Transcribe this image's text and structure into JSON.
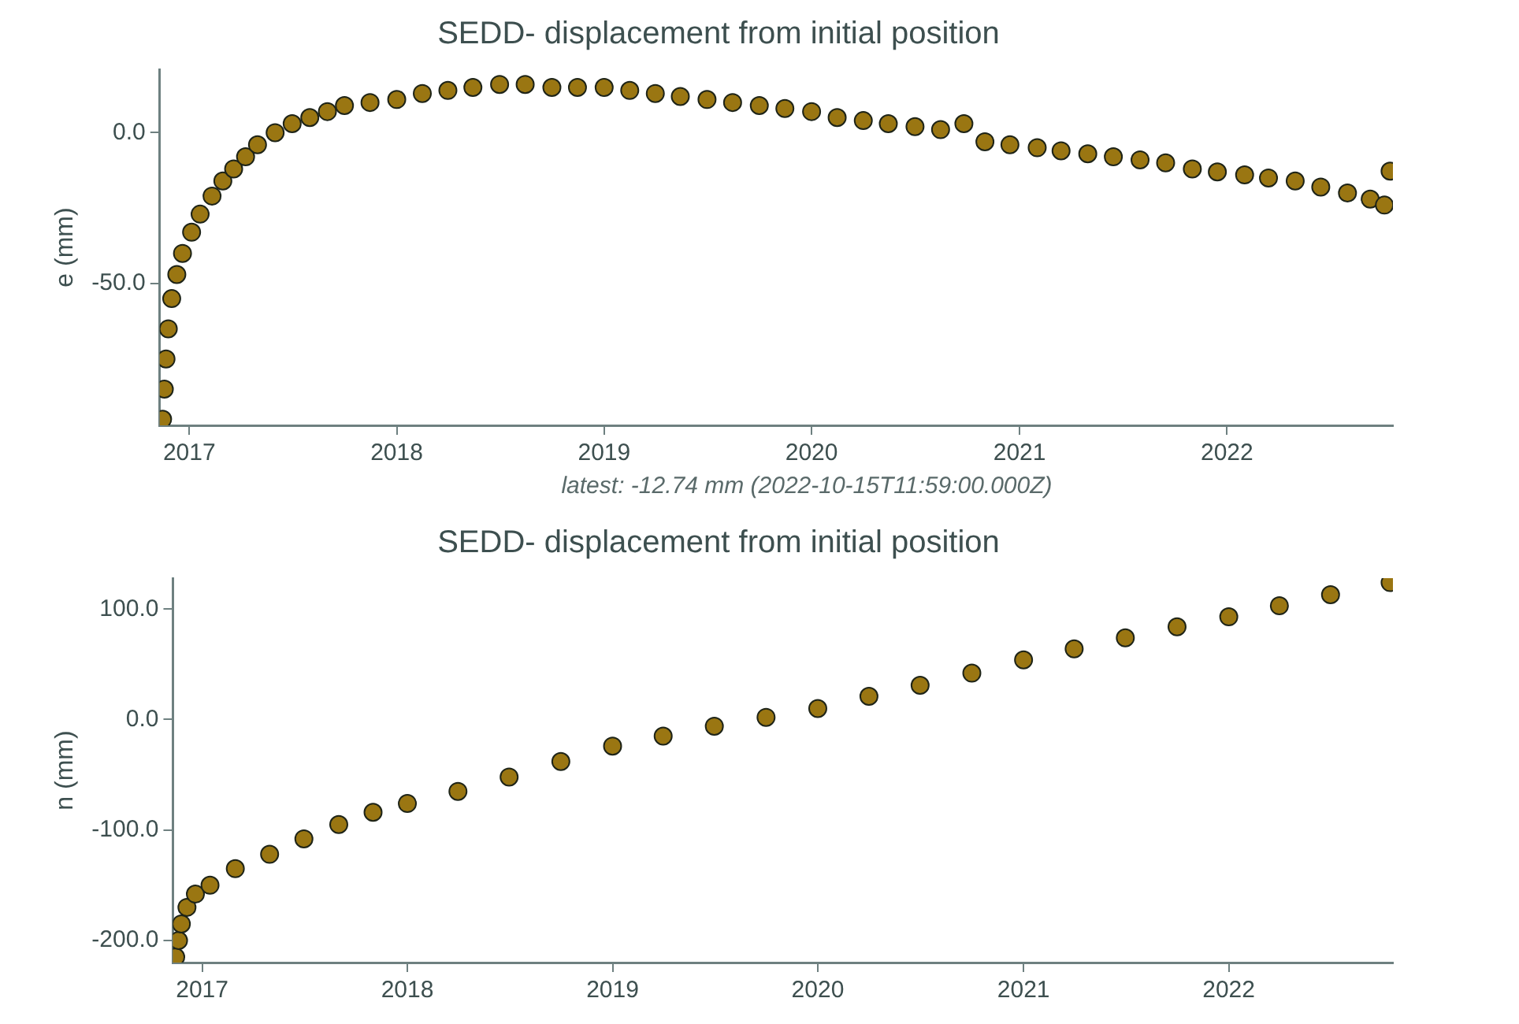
{
  "chart_data": [
    {
      "type": "scatter",
      "title": "SEDD- displacement from initial position",
      "ylabel": "e (mm)",
      "annotations": [
        "latest: -12.74 mm (2022-10-15T11:59:00.000Z)"
      ],
      "marker": "circle",
      "grid": false,
      "legend": false,
      "xlim": [
        "2016-11-10",
        "2022-10-20"
      ],
      "ylim": [
        -97,
        21
      ],
      "xticks": [
        {
          "value": "2017-01-01",
          "label": "2017"
        },
        {
          "value": "2018-01-01",
          "label": "2018"
        },
        {
          "value": "2019-01-01",
          "label": "2019"
        },
        {
          "value": "2020-01-01",
          "label": "2020"
        },
        {
          "value": "2021-01-01",
          "label": "2021"
        },
        {
          "value": "2022-01-01",
          "label": "2022"
        }
      ],
      "yticks": [
        {
          "value": -50,
          "label": "-50.0"
        },
        {
          "value": 0,
          "label": "0.0"
        }
      ],
      "series": [
        {
          "color": "#9a7612",
          "x": [
            "2016-11-15",
            "2016-11-18",
            "2016-11-21",
            "2016-11-25",
            "2016-12-01",
            "2016-12-10",
            "2016-12-20",
            "2017-01-05",
            "2017-01-20",
            "2017-02-10",
            "2017-03-01",
            "2017-03-20",
            "2017-04-10",
            "2017-05-01",
            "2017-06-01",
            "2017-07-01",
            "2017-08-01",
            "2017-09-01",
            "2017-10-01",
            "2017-11-15",
            "2018-01-01",
            "2018-02-15",
            "2018-04-01",
            "2018-05-15",
            "2018-07-01",
            "2018-08-15",
            "2018-10-01",
            "2018-11-15",
            "2019-01-01",
            "2019-02-15",
            "2019-04-01",
            "2019-05-15",
            "2019-07-01",
            "2019-08-15",
            "2019-10-01",
            "2019-11-15",
            "2020-01-01",
            "2020-02-15",
            "2020-04-01",
            "2020-05-15",
            "2020-07-01",
            "2020-08-15",
            "2020-09-25",
            "2020-11-01",
            "2020-12-15",
            "2021-02-01",
            "2021-03-15",
            "2021-05-01",
            "2021-06-15",
            "2021-08-01",
            "2021-09-15",
            "2021-11-01",
            "2021-12-15",
            "2022-02-01",
            "2022-03-15",
            "2022-05-01",
            "2022-06-15",
            "2022-08-01",
            "2022-09-10",
            "2022-10-05",
            "2022-10-15"
          ],
          "values": [
            -95,
            -85,
            -75,
            -65,
            -55,
            -47,
            -40,
            -33,
            -27,
            -21,
            -16,
            -12,
            -8,
            -4,
            0,
            3,
            5,
            7,
            9,
            10,
            11,
            13,
            14,
            15,
            16,
            16,
            15,
            15,
            15,
            14,
            13,
            12,
            11,
            10,
            9,
            8,
            7,
            5,
            4,
            3,
            2,
            1,
            3,
            -3,
            -4,
            -5,
            -6,
            -7,
            -8,
            -9,
            -10,
            -12,
            -13,
            -14,
            -15,
            -16,
            -18,
            -20,
            -22,
            -24,
            -12.74
          ]
        }
      ]
    },
    {
      "type": "scatter",
      "title": "SEDD- displacement from initial position",
      "ylabel": "n (mm)",
      "marker": "circle",
      "grid": false,
      "legend": false,
      "xlim": [
        "2016-11-10",
        "2022-10-20"
      ],
      "ylim": [
        -220,
        128
      ],
      "xticks": [
        {
          "value": "2017-01-01",
          "label": "2017"
        },
        {
          "value": "2018-01-01",
          "label": "2018"
        },
        {
          "value": "2019-01-01",
          "label": "2019"
        },
        {
          "value": "2020-01-01",
          "label": "2020"
        },
        {
          "value": "2021-01-01",
          "label": "2021"
        },
        {
          "value": "2022-01-01",
          "label": "2022"
        }
      ],
      "yticks": [
        {
          "value": -200,
          "label": "-200.0"
        },
        {
          "value": -100,
          "label": "-100.0"
        },
        {
          "value": 0,
          "label": "0.0"
        },
        {
          "value": 100,
          "label": "100.0"
        }
      ],
      "series": [
        {
          "color": "#9a7612",
          "x": [
            "2016-11-15",
            "2016-11-20",
            "2016-11-25",
            "2016-12-05",
            "2016-12-20",
            "2017-01-15",
            "2017-03-01",
            "2017-05-01",
            "2017-07-01",
            "2017-09-01",
            "2017-11-01",
            "2018-01-01",
            "2018-04-01",
            "2018-07-01",
            "2018-10-01",
            "2019-01-01",
            "2019-04-01",
            "2019-07-01",
            "2019-10-01",
            "2020-01-01",
            "2020-04-01",
            "2020-07-01",
            "2020-10-01",
            "2021-01-01",
            "2021-04-01",
            "2021-07-01",
            "2021-10-01",
            "2022-01-01",
            "2022-04-01",
            "2022-07-01",
            "2022-10-15"
          ],
          "values": [
            -215,
            -200,
            -185,
            -170,
            -158,
            -150,
            -135,
            -122,
            -108,
            -95,
            -84,
            -76,
            -65,
            -52,
            -38,
            -24,
            -15,
            -6,
            2,
            10,
            21,
            31,
            42,
            54,
            64,
            74,
            84,
            93,
            103,
            113,
            124
          ]
        }
      ]
    }
  ]
}
